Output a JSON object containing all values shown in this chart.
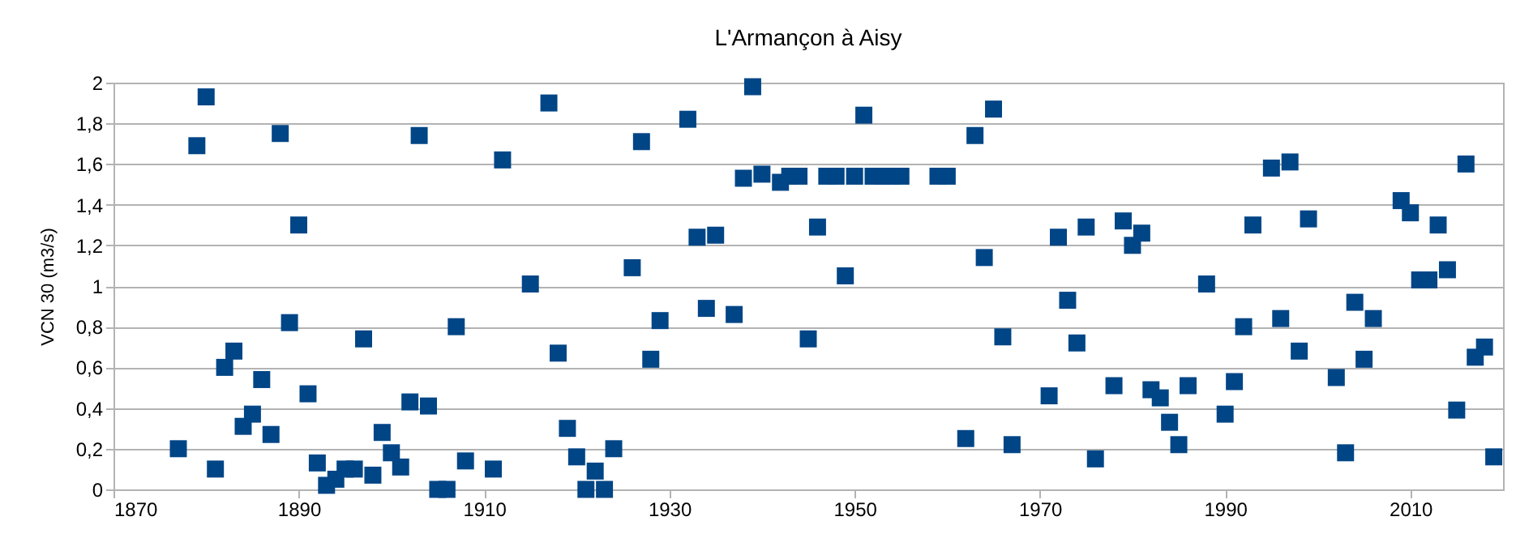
{
  "chart_data": {
    "type": "scatter",
    "title": "L'Armançon à Aisy",
    "ylabel": "VCN 30 (m3/s)",
    "x": [
      1877,
      1879,
      1880,
      1881,
      1882,
      1883,
      1884,
      1885,
      1886,
      1887,
      1888,
      1889,
      1890,
      1891,
      1892,
      1893,
      1894,
      1895,
      1896,
      1897,
      1898,
      1899,
      1900,
      1901,
      1902,
      1903,
      1904,
      1905,
      1906,
      1907,
      1908,
      1911,
      1912,
      1915,
      1917,
      1918,
      1919,
      1920,
      1921,
      1922,
      1923,
      1924,
      1926,
      1927,
      1928,
      1929,
      1932,
      1933,
      1934,
      1935,
      1937,
      1938,
      1939,
      1940,
      1942,
      1943,
      1944,
      1945,
      1946,
      1947,
      1948,
      1949,
      1950,
      1951,
      1952,
      1953,
      1954,
      1955,
      1959,
      1960,
      1962,
      1963,
      1964,
      1965,
      1966,
      1967,
      1971,
      1972,
      1973,
      1974,
      1975,
      1976,
      1978,
      1979,
      1980,
      1981,
      1982,
      1983,
      1984,
      1985,
      1986,
      1988,
      1990,
      1991,
      1992,
      1993,
      1995,
      1996,
      1997,
      1998,
      1999,
      2002,
      2003,
      2004,
      2005,
      2006,
      2009,
      2010,
      2011,
      2012,
      2013,
      2014,
      2015,
      2016,
      2017,
      2018,
      2019
    ],
    "series": [
      {
        "color": "#004586",
        "values": [
          0.2,
          1.69,
          1.93,
          0.1,
          0.6,
          0.68,
          0.31,
          0.37,
          0.54,
          0.27,
          1.75,
          0.82,
          1.3,
          0.47,
          0.13,
          0.02,
          0.05,
          0.1,
          0.1,
          0.74,
          0.07,
          0.28,
          0.18,
          0.11,
          0.43,
          1.74,
          0.41,
          0.0,
          0.0,
          0.8,
          0.14,
          0.1,
          1.62,
          1.01,
          1.9,
          0.67,
          0.3,
          0.16,
          0.0,
          0.09,
          0.0,
          0.2,
          1.09,
          1.71,
          0.64,
          0.83,
          1.82,
          1.24,
          0.89,
          1.25,
          0.86,
          1.53,
          1.98,
          1.55,
          1.51,
          1.54,
          1.54,
          0.74,
          1.29,
          1.54,
          1.54,
          1.05,
          1.54,
          1.84,
          1.54,
          1.54,
          1.54,
          1.54,
          1.54,
          1.54,
          0.25,
          1.74,
          1.14,
          1.87,
          0.75,
          0.22,
          0.46,
          1.24,
          0.93,
          0.72,
          1.29,
          0.15,
          0.51,
          1.32,
          1.2,
          1.26,
          0.49,
          0.45,
          0.33,
          0.22,
          0.51,
          1.01,
          0.37,
          0.53,
          0.8,
          1.3,
          1.58,
          0.84,
          1.61,
          0.68,
          1.33,
          0.55,
          0.18,
          0.92,
          0.64,
          0.84,
          1.42,
          1.36,
          1.03,
          1.03,
          1.3,
          1.08,
          0.39,
          1.6,
          0.65,
          0.7,
          0.16
        ]
      }
    ],
    "xlim": [
      1870,
      2020
    ],
    "xticks": [
      1870,
      1890,
      1910,
      1930,
      1950,
      1970,
      1990,
      2010
    ],
    "ylim": [
      0,
      2
    ],
    "yticks": [
      0,
      {
        "value": 0.2,
        "label": "0,2"
      },
      {
        "value": 0.4,
        "label": "0,4"
      },
      {
        "value": 0.6,
        "label": "0,6"
      },
      {
        "value": 0.8,
        "label": "0,8"
      },
      1,
      {
        "value": 1.2,
        "label": "1,2"
      },
      {
        "value": 1.4,
        "label": "1,4"
      },
      {
        "value": 1.6,
        "label": "1,6"
      },
      {
        "value": 1.8,
        "label": "1,8"
      },
      2
    ],
    "grid": "y",
    "marker": "square"
  }
}
